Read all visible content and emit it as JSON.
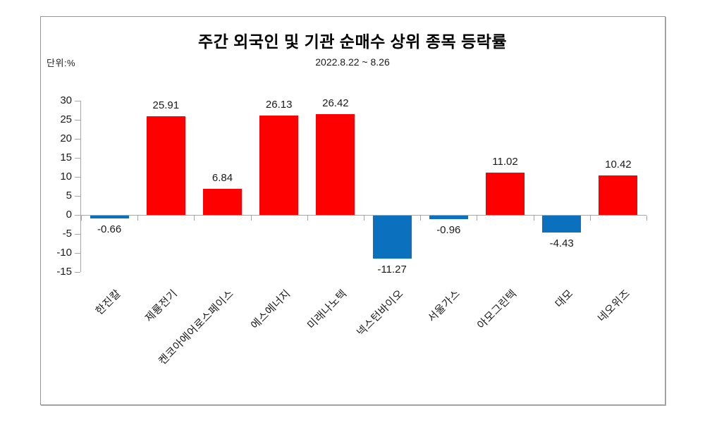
{
  "header": {
    "title": "주간 외국인 및 기관 순매수 상위 종목 등락률",
    "subtitle": "2022.8.22 ~ 8.26",
    "unit_label": "단위:%"
  },
  "chart_data": {
    "type": "bar",
    "title": "주간 외국인 및 기관 순매수 상위 종목 등락률",
    "subtitle": "2022.8.22 ~ 8.26",
    "unit": "%",
    "categories": [
      "한진칼",
      "제룡전기",
      "켄코아에어로스페이스",
      "에스에너지",
      "미래나노텍",
      "넥스턴바이오",
      "서울가스",
      "아모그린텍",
      "대모",
      "네오위즈"
    ],
    "values": [
      -0.66,
      25.91,
      6.84,
      26.13,
      26.42,
      -11.27,
      -0.96,
      11.02,
      -4.43,
      10.42
    ],
    "value_label_decimals": 2,
    "ylim": [
      -15,
      30
    ],
    "y_ticks": [
      30,
      25,
      20,
      15,
      10,
      5,
      0,
      -5,
      -10,
      -15
    ],
    "grid": false,
    "legend_position": "none",
    "category_label_rotation_deg": -45,
    "colors": {
      "positive_bar": "#FE0000",
      "negative_bar": "#0B70BE",
      "axis": "#A6A6A6",
      "text": "#1A1A1A"
    }
  }
}
